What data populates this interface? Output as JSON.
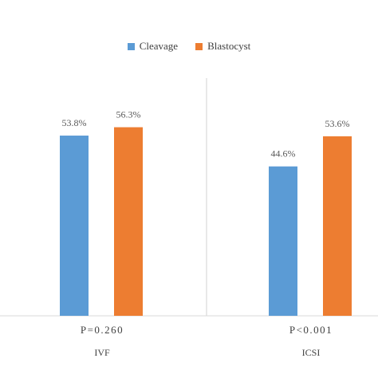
{
  "chart_data": {
    "type": "bar",
    "groups": [
      {
        "category": "IVF",
        "p_label": "P=0.260"
      },
      {
        "category": "ICSI",
        "p_label": "P<0.001"
      }
    ],
    "series": [
      {
        "name": "Cleavage",
        "color": "#5B9BD5",
        "values": [
          53.8,
          44.6
        ],
        "labels": [
          "53.8%",
          "44.6%"
        ]
      },
      {
        "name": "Blastocyst",
        "color": "#ED7D31",
        "values": [
          56.3,
          53.6
        ],
        "labels": [
          "56.3%",
          "53.6%"
        ]
      }
    ],
    "ylim": [
      0,
      100
    ],
    "legend": "top-center",
    "grid": false,
    "title": "",
    "xlabel": "",
    "ylabel": ""
  }
}
